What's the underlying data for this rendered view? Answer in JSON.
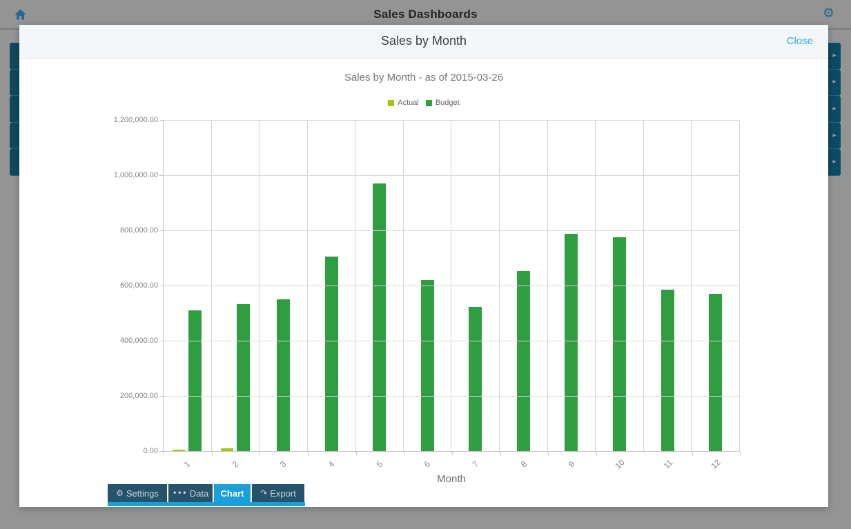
{
  "topbar": {
    "title": "Sales Dashboards"
  },
  "background": {
    "left_rows": 5,
    "right_rows": 5,
    "row_color": "#0d4a63",
    "chevron_glyph": "▸"
  },
  "modal": {
    "title": "Sales by Month",
    "close_label": "Close",
    "accent_color": "#29abe2"
  },
  "tabs": [
    {
      "label": "Settings",
      "icon": "gear-icon",
      "icon_glyph": "⚙",
      "active": false
    },
    {
      "label": "Data",
      "icon": "dots-icon",
      "icon_glyph": "•••",
      "active": false
    },
    {
      "label": "Chart",
      "icon": "",
      "icon_glyph": "",
      "active": true
    },
    {
      "label": "Export",
      "icon": "share-icon",
      "icon_glyph": "↷",
      "active": false
    }
  ],
  "chart_data": {
    "type": "bar",
    "title": "Sales by Month - as of 2015-03-26",
    "xlabel": "Month",
    "ylabel": "",
    "categories": [
      "1",
      "2",
      "3",
      "4",
      "5",
      "6",
      "7",
      "8",
      "9",
      "10",
      "11",
      "12"
    ],
    "series": [
      {
        "name": "Actual",
        "color": "#a2c613",
        "values": [
          6000,
          11000,
          0,
          0,
          0,
          0,
          0,
          0,
          0,
          0,
          0,
          0
        ]
      },
      {
        "name": "Budget",
        "color": "#2f9e41",
        "values": [
          510000,
          533000,
          550000,
          706000,
          970000,
          620000,
          522000,
          652000,
          788000,
          776000,
          584000,
          571000
        ]
      }
    ],
    "ylim": [
      0,
      1200000
    ],
    "ytick_step": 200000,
    "ytick_labels": [
      "0.00",
      "200,000.00",
      "400,000.00",
      "600,000.00",
      "800,000.00",
      "1,000,000.00",
      "1,200,000.00"
    ],
    "legend_position": "top",
    "grid": true
  }
}
